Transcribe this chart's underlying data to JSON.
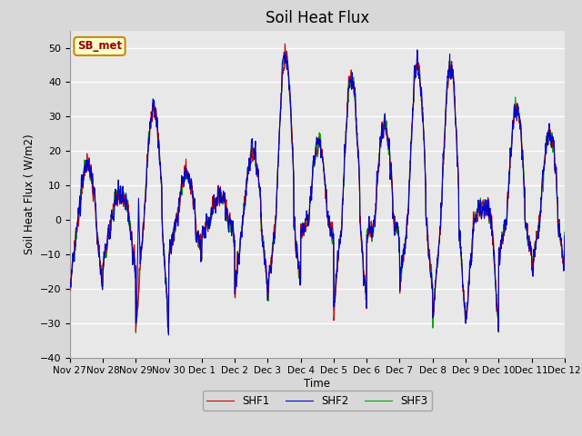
{
  "title": "Soil Heat Flux",
  "ylabel": "Soil Heat Flux ( W/m2)",
  "xlabel": "Time",
  "ylim": [
    -40,
    55
  ],
  "xlim": [
    0,
    360
  ],
  "background_color": "#d8d8d8",
  "plot_bg_color": "#e8e8e8",
  "grid_color": "#ffffff",
  "line_colors": {
    "SHF1": "#cc0000",
    "SHF2": "#0000cc",
    "SHF3": "#00aa00"
  },
  "line_width": 0.8,
  "annotation_text": "SB_met",
  "annotation_bg": "#ffffcc",
  "annotation_border": "#cc8800",
  "annotation_text_color": "#990000",
  "tick_labels": [
    "Nov 27",
    "Nov 28",
    "Nov 29",
    "Nov 30",
    "Dec 1",
    "Dec 2",
    "Dec 3",
    "Dec 4",
    "Dec 5",
    "Dec 6",
    "Dec 7",
    "Dec 8",
    "Dec 9",
    "Dec 10",
    "Dec 11",
    "Dec 12"
  ],
  "tick_positions": [
    0,
    24,
    48,
    72,
    96,
    120,
    144,
    168,
    192,
    216,
    240,
    264,
    288,
    312,
    336,
    360
  ],
  "yticks": [
    -40,
    -30,
    -20,
    -10,
    0,
    10,
    20,
    30,
    40,
    50
  ],
  "num_points": 2160,
  "figsize": [
    6.4,
    4.8
  ],
  "dpi": 100
}
